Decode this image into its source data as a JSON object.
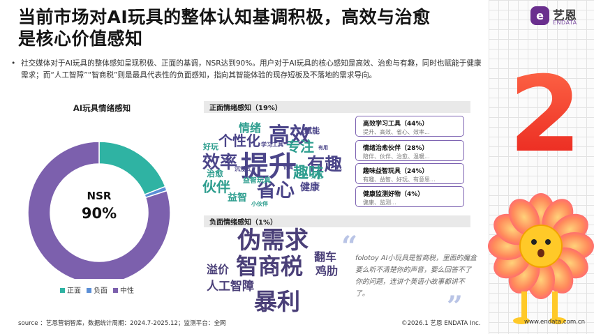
{
  "header": {
    "title_line1": "当前市场对AI玩具的整体认知基调积极，高效与治愈",
    "title_line2": "是核心价值感知"
  },
  "brand": {
    "logo_glyph": "e",
    "name_cn": "艺恩",
    "name_en": "ENDATA"
  },
  "bullet": {
    "text": "社交媒体对于AI玩具的整体感知呈现积极、正面的基调，NSR达到90%。用户对于AI玩具的核心感知是高效、治愈与有趣，同时也赋能于健康需求；而“人工智障”“智商税”则是最具代表性的负面感知，指向其智能体验的现存短板及不落地的需求导向。"
  },
  "chart_data": {
    "type": "pie",
    "title": "AI玩具情绪感知",
    "categories": [
      "正面",
      "负面",
      "中性"
    ],
    "values": [
      19,
      1,
      80
    ],
    "unit": "%",
    "colors": [
      "#2fb3a3",
      "#5b8fd6",
      "#7c60ad"
    ],
    "center_label": "NSR",
    "center_value": "90%",
    "legend_position": "bottom"
  },
  "positive": {
    "heading": "正面情绪感知（19%）",
    "categories": [
      {
        "label": "高效学习工具（44%）",
        "keywords": "提升、高效、省心、效率..."
      },
      {
        "label": "情绪治愈伙伴（28%）",
        "keywords": "陪伴、伙伴、治愈、温暖..."
      },
      {
        "label": "趣味益智玩具（24%）",
        "keywords": "有趣、益智、好玩、有意思..."
      },
      {
        "label": "健康监测好物（4%）",
        "keywords": "健康、监测..."
      }
    ],
    "words": [
      {
        "text": "提升",
        "color": "#4b4589"
      },
      {
        "text": "高效",
        "color": "#4b4589"
      },
      {
        "text": "效率",
        "color": "#4b4589"
      },
      {
        "text": "个性化",
        "color": "#4b4589"
      },
      {
        "text": "省心",
        "color": "#4b4589"
      },
      {
        "text": "有趣",
        "color": "#4b4589"
      },
      {
        "text": "伙伴",
        "color": "#2f9e8f"
      },
      {
        "text": "趣味",
        "color": "#2f9e8f"
      },
      {
        "text": "专注",
        "color": "#2f9e8f"
      },
      {
        "text": "情绪",
        "color": "#2f9e8f"
      },
      {
        "text": "赋能",
        "color": "#4b4589"
      },
      {
        "text": "好玩",
        "color": "#2f9e8f"
      },
      {
        "text": "治愈",
        "color": "#2f9e8f"
      },
      {
        "text": "益智",
        "color": "#2f9e8f"
      },
      {
        "text": "健康",
        "color": "#4b4589"
      },
      {
        "text": "益智玩具",
        "color": "#2f9e8f"
      },
      {
        "text": "学习工具",
        "color": "#4b4589"
      },
      {
        "text": "沉浸式",
        "color": "#4b4589"
      },
      {
        "text": "仿真",
        "color": "#4b4589"
      },
      {
        "text": "好用",
        "color": "#2f9e8f"
      },
      {
        "text": "小伙伴",
        "color": "#2f9e8f"
      },
      {
        "text": "有用",
        "color": "#4b4589"
      }
    ]
  },
  "negative": {
    "heading": "负面情绪感知（1%）",
    "words": [
      {
        "text": "伪需求"
      },
      {
        "text": "智商税"
      },
      {
        "text": "暴利"
      },
      {
        "text": "人工智障"
      },
      {
        "text": "溢价"
      },
      {
        "text": "翻车"
      },
      {
        "text": "鸡肋"
      }
    ],
    "quote_open": "“",
    "quote_close": "”",
    "quote": "folotoy AI小玩具是智商税，里面的魔盒要么听不清楚你的声音，要么回答不了你的问题，连讲个英语小故事都讲不了。"
  },
  "footer": {
    "source": "source ：艺恩营销智库，数据统计周期：2024.7-2025.12；监测平台：全网",
    "copyright": "©2026.1  艺恩 ENDATA Inc.",
    "website": "www.endata.com.cn"
  },
  "decor": {
    "big_number": "2"
  }
}
